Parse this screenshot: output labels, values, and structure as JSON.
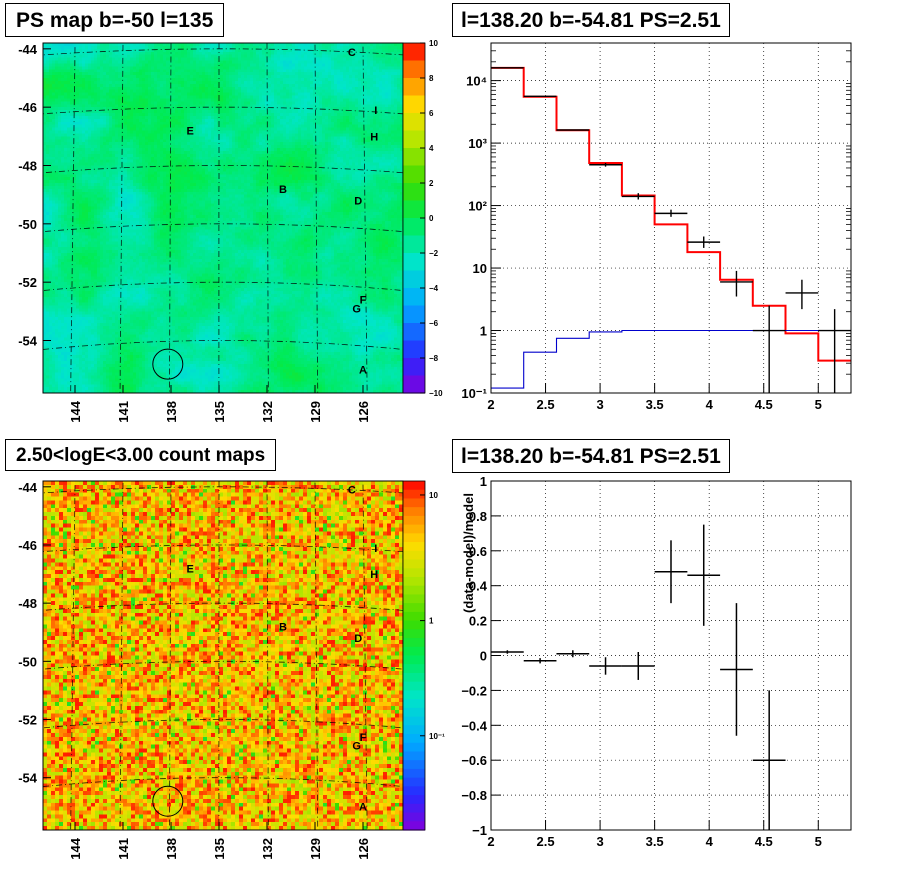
{
  "panels": {
    "top_left_title": "PS map b=-50 l=135",
    "top_right_title": "l=138.20 b=-54.81 PS=2.51",
    "bottom_left_title": "2.50<logE<3.00 count maps",
    "bottom_right_title": "l=138.20 b=-54.81 PS=2.51"
  },
  "chart_data": [
    {
      "type": "heatmap",
      "title": "PS map b=-50 l=135",
      "x_ticks": [
        "144",
        "141",
        "138",
        "135",
        "132",
        "129",
        "126"
      ],
      "y_ticks": [
        "-44",
        "-46",
        "-48",
        "-50",
        "-52",
        "-54"
      ],
      "xlim": [
        146,
        123.5
      ],
      "ylim": [
        -55.8,
        -43.8
      ],
      "colorbar_ticks": [
        "10",
        "8",
        "6",
        "4",
        "2",
        "0",
        "−2",
        "−4",
        "−6",
        "−8",
        "−10"
      ],
      "zlim": [
        -10,
        10
      ],
      "dominant_value": 0,
      "source_markers": [
        {
          "label": "C",
          "l": 126.7,
          "b": -44.1
        },
        {
          "label": "I",
          "l": 125.2,
          "b": -46.1
        },
        {
          "label": "E",
          "l": 136.8,
          "b": -46.8
        },
        {
          "label": "H",
          "l": 125.3,
          "b": -47.0
        },
        {
          "label": "B",
          "l": 131.0,
          "b": -48.8
        },
        {
          "label": "D",
          "l": 126.3,
          "b": -49.2
        },
        {
          "label": "F",
          "l": 126.0,
          "b": -52.6
        },
        {
          "label": "G",
          "l": 126.4,
          "b": -52.9
        },
        {
          "label": "A",
          "l": 126.0,
          "b": -55.0
        }
      ],
      "circle": {
        "l": 138.2,
        "b": -54.81
      }
    },
    {
      "type": "line",
      "title": "l=138.20 b=-54.81 PS=2.51",
      "x_ticks": [
        "2",
        "2.5",
        "3",
        "3.5",
        "4",
        "4.5",
        "5"
      ],
      "y_ticks": [
        "10⁻¹",
        "1",
        "10",
        "10²",
        "10³",
        "10⁴"
      ],
      "xlim": [
        2,
        5.3
      ],
      "ylim": [
        0.1,
        40000
      ],
      "log_y": true,
      "grid": true,
      "bin_edges": [
        2.0,
        2.3,
        2.6,
        2.9,
        3.2,
        3.5,
        3.8,
        4.1,
        4.4,
        4.7,
        5.0,
        5.3
      ],
      "series": [
        {
          "color": "#ff0000",
          "values": [
            16000,
            5500,
            1600,
            480,
            145,
            50,
            18,
            6.5,
            2.5,
            0.9,
            0.33
          ]
        },
        {
          "color": "#0000cc",
          "values": [
            0.12,
            0.45,
            0.75,
            0.95,
            1.0,
            1.0,
            1.0,
            1.0,
            1.0,
            1.0,
            1.0
          ]
        }
      ],
      "points": [
        {
          "x": 2.15,
          "y": 16000,
          "y_low": 16000,
          "y_high": 16000
        },
        {
          "x": 2.45,
          "y": 5600,
          "y_low": 5600,
          "y_high": 5600
        },
        {
          "x": 2.75,
          "y": 1620,
          "y_low": 1620,
          "y_high": 1620
        },
        {
          "x": 3.05,
          "y": 450,
          "y_low": 420,
          "y_high": 480
        },
        {
          "x": 3.35,
          "y": 140,
          "y_low": 125,
          "y_high": 158
        },
        {
          "x": 3.65,
          "y": 75,
          "y_low": 66,
          "y_high": 86
        },
        {
          "x": 3.95,
          "y": 26,
          "y_low": 21,
          "y_high": 32
        },
        {
          "x": 4.25,
          "y": 6,
          "y_low": 3.5,
          "y_high": 9
        },
        {
          "x": 4.55,
          "y": 1,
          "y_low": 0.1,
          "y_high": 2.5
        },
        {
          "x": 4.85,
          "y": 4,
          "y_low": 2.2,
          "y_high": 6.5
        },
        {
          "x": 5.15,
          "y": 1,
          "y_low": 0.1,
          "y_high": 2.2
        }
      ],
      "point_halfwidth": 0.15
    },
    {
      "type": "heatmap",
      "title": "2.50<logE<3.00 count maps",
      "x_ticks": [
        "144",
        "141",
        "138",
        "135",
        "132",
        "129",
        "126"
      ],
      "y_ticks": [
        "-44",
        "-46",
        "-48",
        "-50",
        "-52",
        "-54"
      ],
      "xlim": [
        146,
        123.5
      ],
      "ylim": [
        -55.8,
        -43.8
      ],
      "colorbar_ticks": [
        "10",
        "1",
        "10⁻¹"
      ],
      "log_z": true,
      "source_markers": [
        {
          "label": "C",
          "l": 126.7,
          "b": -44.1
        },
        {
          "label": "I",
          "l": 125.2,
          "b": -46.1
        },
        {
          "label": "E",
          "l": 136.8,
          "b": -46.8
        },
        {
          "label": "H",
          "l": 125.3,
          "b": -47.0
        },
        {
          "label": "B",
          "l": 131.0,
          "b": -48.8
        },
        {
          "label": "D",
          "l": 126.3,
          "b": -49.2
        },
        {
          "label": "F",
          "l": 126.0,
          "b": -52.6
        },
        {
          "label": "G",
          "l": 126.4,
          "b": -52.9
        },
        {
          "label": "A",
          "l": 126.0,
          "b": -55.0
        }
      ],
      "circle": {
        "l": 138.2,
        "b": -54.81
      }
    },
    {
      "type": "scatter",
      "title": "l=138.20 b=-54.81 PS=2.51",
      "ylabel": "(data-model)/model",
      "x_ticks": [
        "2",
        "2.5",
        "3",
        "3.5",
        "4",
        "4.5",
        "5"
      ],
      "y_ticks": [
        "−1",
        "−0.8",
        "−0.6",
        "−0.4",
        "−0.2",
        "0",
        "0.2",
        "0.4",
        "0.6",
        "0.8",
        "1"
      ],
      "xlim": [
        2,
        5.3
      ],
      "ylim": [
        -1,
        1
      ],
      "grid": true,
      "point_halfwidth": 0.15,
      "points": [
        {
          "x": 2.15,
          "y": 0.02,
          "err": 0.01
        },
        {
          "x": 2.45,
          "y": -0.03,
          "err": 0.015
        },
        {
          "x": 2.75,
          "y": 0.01,
          "err": 0.02
        },
        {
          "x": 3.05,
          "y": -0.06,
          "err": 0.05
        },
        {
          "x": 3.35,
          "y": -0.06,
          "err": 0.08
        },
        {
          "x": 3.65,
          "y": 0.48,
          "err": 0.18
        },
        {
          "x": 3.95,
          "y": 0.46,
          "err": 0.29
        },
        {
          "x": 4.25,
          "y": -0.08,
          "err": 0.38
        },
        {
          "x": 4.55,
          "y": -0.6,
          "err": 0.4
        }
      ]
    }
  ]
}
